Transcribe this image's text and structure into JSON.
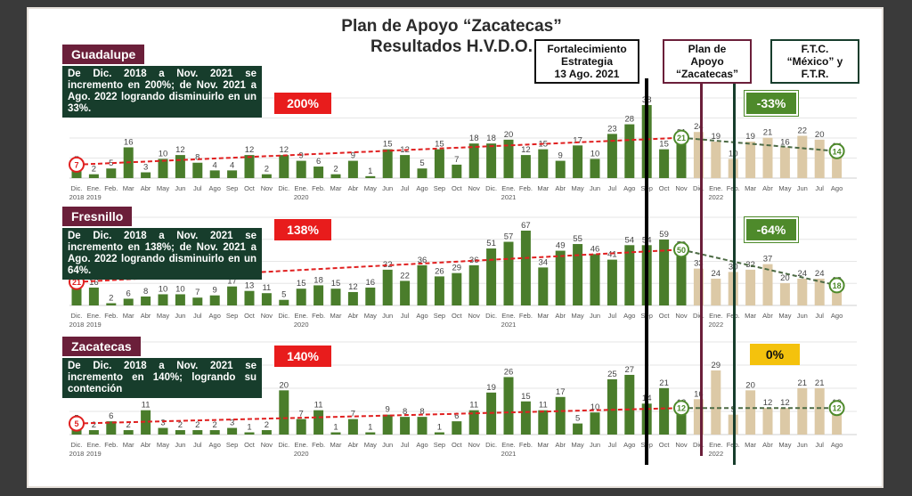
{
  "title": {
    "line1": "Plan de Apoyo “Zacatecas”",
    "line2": "Resultados H.V.D.O."
  },
  "labels": {
    "fortalecimiento": [
      "Fortalecimiento",
      "Estrategia",
      "13 Ago. 2021"
    ],
    "plan": [
      "Plan de",
      "Apoyo",
      "“Zacatecas”"
    ],
    "ftc": [
      "F.T.C.",
      "“México” y",
      "F.T.R."
    ]
  },
  "colors": {
    "green": "#4a7d2b",
    "tan": "#dcc9a6",
    "trend_red": "#e02020",
    "trend_green": "#4d6b45",
    "region": "#6b1f3a",
    "note_bg": "#173d2c",
    "pct_red": "#e81c1c",
    "pct_green": "#4e8a2b",
    "pct_yellow": "#f4c20d"
  },
  "chart_data": [
    {
      "type": "bar",
      "region": "Guadalupe",
      "note": "De Dic. 2018 a Nov. 2021 se incremento en 200%; de Nov. 2021 a Ago. 2022 logrando disminuirlo en un 33%.",
      "change_before": "200%",
      "change_after": "-33%",
      "categories": [
        "Dic.",
        "Ene.",
        "Feb.",
        "Mar",
        "Abr",
        "May",
        "Jun",
        "Jul",
        "Ago",
        "Sep",
        "Oct",
        "Nov",
        "Dic.",
        "Ene.",
        "Feb.",
        "Mar",
        "Abr",
        "May",
        "Jun",
        "Jul",
        "Ago",
        "Sep",
        "Oct",
        "Nov",
        "Dic.",
        "Ene.",
        "Feb.",
        "Mar",
        "Abr",
        "May",
        "Jun",
        "Jul",
        "Ago",
        "Sep",
        "Oct",
        "Nov",
        "Dic.",
        "Ene.",
        "Feb.",
        "Mar",
        "Abr",
        "May",
        "Jun",
        "Jul",
        "Ago"
      ],
      "values": [
        7,
        2,
        5,
        16,
        3,
        10,
        12,
        8,
        4,
        4,
        12,
        2,
        12,
        9,
        6,
        2,
        9,
        1,
        15,
        12,
        5,
        15,
        7,
        18,
        18,
        20,
        12,
        15,
        9,
        17,
        10,
        23,
        28,
        38,
        15,
        21,
        24,
        19,
        10,
        19,
        21,
        16,
        22,
        20,
        14
      ],
      "circled": [
        [
          "Dic. 2018",
          "7"
        ],
        [
          "Nov. 2021",
          "21"
        ],
        [
          "Ago. 2022",
          "14"
        ]
      ],
      "year_labels": [
        "2018",
        "2019",
        "2020",
        "2021",
        "2022"
      ]
    },
    {
      "type": "bar",
      "region": "Fresnillo",
      "note": "De Dic. 2018 a Nov. 2021 se incremento en 138%; de Nov. 2021 a Ago. 2022 logrando disminuirlo en un 64%.",
      "change_before": "138%",
      "change_after": "-64%",
      "categories": [
        "Dic.",
        "Ene.",
        "Feb.",
        "Mar",
        "Abr",
        "May",
        "Jun",
        "Jul",
        "Ago",
        "Sep",
        "Oct",
        "Nov",
        "Dic.",
        "Ene.",
        "Feb.",
        "Mar",
        "Abr",
        "May",
        "Jun",
        "Jul",
        "Ago",
        "Sep",
        "Oct",
        "Nov",
        "Dic.",
        "Ene.",
        "Feb.",
        "Mar",
        "Abr",
        "May",
        "Jun",
        "Jul",
        "Ago",
        "Sep",
        "Oct",
        "Nov",
        "Dic.",
        "Ene.",
        "Feb.",
        "Mar",
        "Abr",
        "May",
        "Jun",
        "Jul",
        "Ago"
      ],
      "values": [
        21,
        16,
        2,
        6,
        8,
        10,
        10,
        7,
        9,
        17,
        13,
        11,
        5,
        15,
        18,
        15,
        12,
        16,
        32,
        22,
        36,
        26,
        29,
        36,
        51,
        57,
        67,
        34,
        49,
        55,
        46,
        41,
        54,
        54,
        59,
        50,
        33,
        24,
        30,
        32,
        37,
        20,
        24,
        24,
        18
      ],
      "circled": [
        [
          "Dic. 2018",
          "21"
        ],
        [
          "Nov. 2021",
          "50"
        ],
        [
          "Ago. 2022",
          "18"
        ]
      ],
      "year_labels": [
        "2018",
        "2019",
        "2020",
        "2021",
        "2022"
      ]
    },
    {
      "type": "bar",
      "region": "Zacatecas",
      "note": "De Dic. 2018 a Nov. 2021 se incremento en 140%; logrando su contención",
      "change_before": "140%",
      "change_after": "0%",
      "categories": [
        "Dic.",
        "Ene.",
        "Feb.",
        "Mar",
        "Abr",
        "May",
        "Jun",
        "Jul",
        "Ago",
        "Sep",
        "Oct",
        "Nov",
        "Dic.",
        "Ene.",
        "Feb.",
        "Mar",
        "Abr",
        "May",
        "Jun",
        "Jul",
        "Ago",
        "Sep",
        "Oct",
        "Nov",
        "Dic.",
        "Ene.",
        "Feb.",
        "Mar",
        "Abr",
        "May",
        "Jun",
        "Jul",
        "Ago",
        "Sep",
        "Oct",
        "Nov",
        "Dic.",
        "Ene.",
        "Feb.",
        "Mar",
        "Abr",
        "May",
        "Jun",
        "Jul",
        "Ago"
      ],
      "values": [
        5,
        2,
        6,
        2,
        11,
        3,
        2,
        2,
        2,
        3,
        1,
        2,
        20,
        7,
        11,
        1,
        7,
        1,
        9,
        8,
        8,
        1,
        6,
        11,
        19,
        26,
        15,
        11,
        17,
        5,
        10,
        25,
        27,
        14,
        21,
        12,
        16,
        29,
        9,
        20,
        12,
        12,
        21,
        21,
        12
      ],
      "circled": [
        [
          "Dic. 2018",
          "5"
        ],
        [
          "Nov. 2021",
          "12"
        ],
        [
          "Ago. 2022",
          "12"
        ]
      ],
      "year_labels": [
        "2018",
        "2019",
        "2020",
        "2021",
        "2022"
      ]
    }
  ]
}
